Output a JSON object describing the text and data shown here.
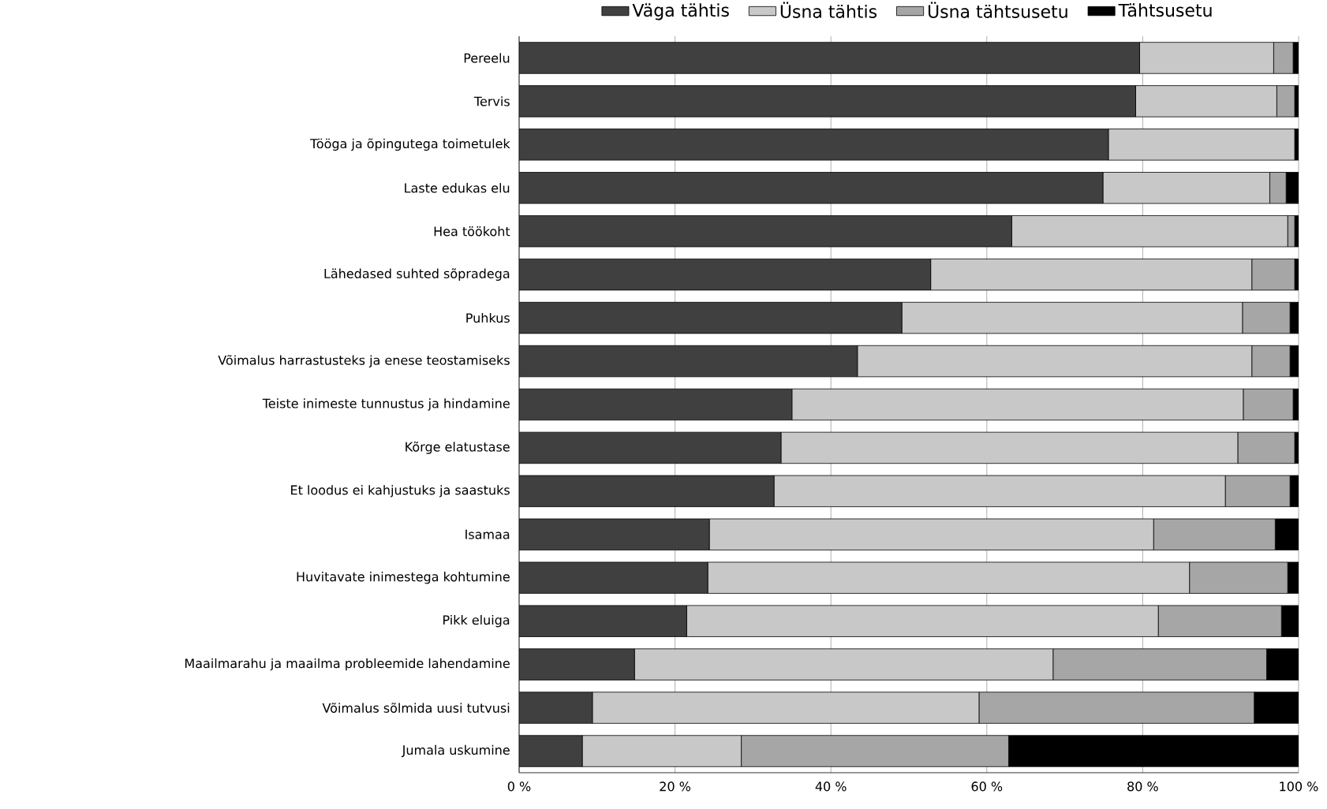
{
  "chart_data": {
    "type": "bar",
    "orientation": "horizontal",
    "stacked": true,
    "grid": "x",
    "legend": "top",
    "categories": [
      "Pereelu",
      "Tervis",
      "Tööga ja õpingutega toimetulek",
      "Laste edukas elu",
      "Hea töökoht",
      "Lähedased suhted sõpradega",
      "Puhkus",
      "Võimalus harrastusteks ja enese teostamiseks",
      "Teiste inimeste tunnustus ja hindamine",
      "Kõrge elatustase",
      "Et loodus ei kahjustuks ja saastuks",
      "Isamaa",
      "Huvitavate inimestega kohtumine",
      "Pikk eluiga",
      "Maailmarahu ja maailma probleemide lahendamine",
      "Võimalus sõlmida uusi tutvusi",
      "Jumala uskumine"
    ],
    "series": [
      {
        "name": "Väga tähtis",
        "color": "#404040",
        "values": [
          79.6,
          79.1,
          75.6,
          74.9,
          63.2,
          52.8,
          49.1,
          43.4,
          35.0,
          33.6,
          32.7,
          24.4,
          24.2,
          21.5,
          14.8,
          9.4,
          8.1
        ]
      },
      {
        "name": "Üsna tähtis",
        "color": "#c8c8c8",
        "values": [
          17.2,
          18.1,
          23.9,
          21.4,
          35.4,
          41.2,
          43.7,
          50.6,
          57.9,
          58.6,
          57.9,
          57.0,
          61.8,
          60.5,
          53.7,
          49.6,
          20.4
        ]
      },
      {
        "name": "Üsna tähtsusetu",
        "color": "#a6a6a6",
        "values": [
          2.5,
          2.3,
          null,
          2.1,
          0.9,
          5.5,
          6.1,
          4.9,
          6.4,
          7.3,
          8.3,
          15.6,
          12.6,
          15.8,
          27.4,
          35.3,
          34.3
        ]
      },
      {
        "name": "Tähtsusetu",
        "color": "#000000",
        "values": [
          0.7,
          0.5,
          0.5,
          1.6,
          0.5,
          0.5,
          1.1,
          1.1,
          0.7,
          0.5,
          1.1,
          3.0,
          1.4,
          2.2,
          4.1,
          5.7,
          37.2
        ]
      }
    ],
    "xlim": [
      0,
      100
    ],
    "xticks": [
      {
        "value": 0,
        "label": "0 %"
      },
      {
        "value": 20,
        "label": "20 %"
      },
      {
        "value": 40,
        "label": "40 %"
      },
      {
        "value": 60,
        "label": "60 %"
      },
      {
        "value": 80,
        "label": "80 %"
      },
      {
        "value": 100,
        "label": "100 %"
      }
    ]
  }
}
